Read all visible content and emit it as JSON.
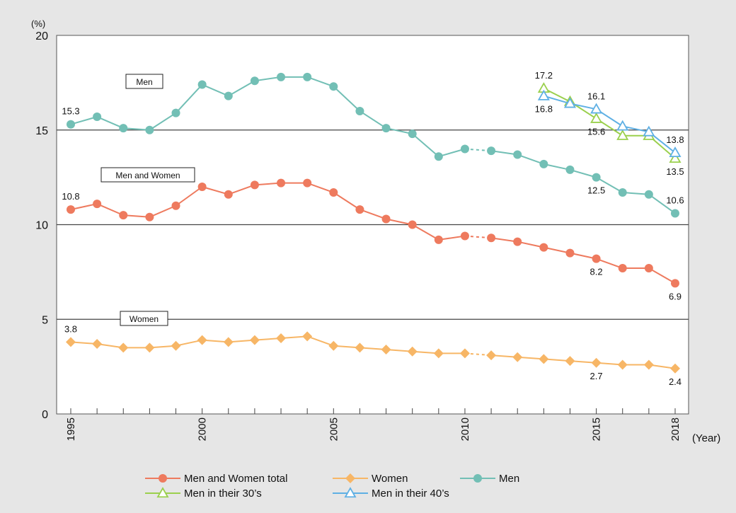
{
  "chart_data": {
    "type": "line",
    "y_unit_label": "(%)",
    "x_unit_label": "(Year)",
    "ylim": [
      0,
      20
    ],
    "y_ticks": [
      "0",
      "5",
      "10",
      "15",
      "20"
    ],
    "x_tick_labels": [
      "1995",
      "2000",
      "2005",
      "2010",
      "2015",
      "2018"
    ],
    "x_tick_values": [
      1995,
      2000,
      2005,
      2010,
      2015,
      2018
    ],
    "x_range": [
      1994.6,
      2018.6
    ],
    "gridlines_at": [
      5,
      10,
      15
    ],
    "boxed_labels": [
      "Men",
      "Men and Women",
      "Women"
    ],
    "legend_position": "bottom",
    "colors": {
      "background": "#e6e6e6",
      "plot": "#ffffff",
      "men_and_women": "#ee7a5e",
      "women": "#f7b666",
      "men": "#72bfb5",
      "men_30s": "#9bd04e",
      "men_40s": "#5fb0e4"
    },
    "series": [
      {
        "name": "Men and Women total",
        "marker": "circle",
        "color_key": "men_and_women",
        "dashed_segment_after_year": 2010,
        "x": [
          1995,
          1996,
          1997,
          1998,
          1999,
          2000,
          2001,
          2002,
          2003,
          2004,
          2005,
          2006,
          2007,
          2008,
          2009,
          2010,
          2011,
          2012,
          2013,
          2014,
          2015,
          2016,
          2017,
          2018
        ],
        "values": [
          10.8,
          11.1,
          10.5,
          10.4,
          11.0,
          12.0,
          11.6,
          12.1,
          12.2,
          12.2,
          11.7,
          10.8,
          10.3,
          10.0,
          9.2,
          9.4,
          9.3,
          9.1,
          8.8,
          8.5,
          8.2,
          7.7,
          7.7,
          6.9
        ]
      },
      {
        "name": "Women",
        "marker": "diamond",
        "color_key": "women",
        "dashed_segment_after_year": 2010,
        "x": [
          1995,
          1996,
          1997,
          1998,
          1999,
          2000,
          2001,
          2002,
          2003,
          2004,
          2005,
          2006,
          2007,
          2008,
          2009,
          2010,
          2011,
          2012,
          2013,
          2014,
          2015,
          2016,
          2017,
          2018
        ],
        "values": [
          3.8,
          3.7,
          3.5,
          3.5,
          3.6,
          3.9,
          3.8,
          3.9,
          4.0,
          4.1,
          3.6,
          3.5,
          3.4,
          3.3,
          3.2,
          3.2,
          3.1,
          3.0,
          2.9,
          2.8,
          2.7,
          2.6,
          2.6,
          2.4
        ]
      },
      {
        "name": "Men",
        "marker": "circle",
        "color_key": "men",
        "dashed_segment_after_year": 2010,
        "x": [
          1995,
          1996,
          1997,
          1998,
          1999,
          2000,
          2001,
          2002,
          2003,
          2004,
          2005,
          2006,
          2007,
          2008,
          2009,
          2010,
          2011,
          2012,
          2013,
          2014,
          2015,
          2016,
          2017,
          2018
        ],
        "values": [
          15.3,
          15.7,
          15.1,
          15.0,
          15.9,
          17.4,
          16.8,
          17.6,
          17.8,
          17.8,
          17.3,
          16.0,
          15.1,
          14.8,
          13.6,
          14.0,
          13.9,
          13.7,
          13.2,
          12.9,
          12.5,
          11.7,
          11.6,
          10.6
        ]
      },
      {
        "name": "Men in their 30’s",
        "marker": "triangle",
        "color_key": "men_30s",
        "x": [
          2013,
          2014,
          2015,
          2016,
          2017,
          2018
        ],
        "values": [
          17.2,
          16.5,
          15.6,
          14.7,
          14.7,
          13.5
        ]
      },
      {
        "name": "Men in their 40’s",
        "marker": "triangle",
        "color_key": "men_40s",
        "x": [
          2013,
          2014,
          2015,
          2016,
          2017,
          2018
        ],
        "values": [
          16.8,
          16.4,
          16.1,
          15.2,
          14.9,
          13.8
        ]
      }
    ],
    "data_labels": [
      {
        "x": 1995,
        "y": 10.8,
        "text": "10.8",
        "pos": "above"
      },
      {
        "x": 2015,
        "y": 8.2,
        "text": "8.2",
        "pos": "below"
      },
      {
        "x": 2018,
        "y": 6.9,
        "text": "6.9",
        "pos": "below"
      },
      {
        "x": 1995,
        "y": 3.8,
        "text": "3.8",
        "pos": "above"
      },
      {
        "x": 2015,
        "y": 2.7,
        "text": "2.7",
        "pos": "below"
      },
      {
        "x": 2018,
        "y": 2.4,
        "text": "2.4",
        "pos": "below"
      },
      {
        "x": 1995,
        "y": 15.3,
        "text": "15.3",
        "pos": "above"
      },
      {
        "x": 2015,
        "y": 12.5,
        "text": "12.5",
        "pos": "below"
      },
      {
        "x": 2018,
        "y": 10.6,
        "text": "10.6",
        "pos": "above"
      },
      {
        "x": 2013,
        "y": 17.2,
        "text": "17.2",
        "pos": "above"
      },
      {
        "x": 2013,
        "y": 16.8,
        "text": "16.8",
        "pos": "below"
      },
      {
        "x": 2015,
        "y": 16.1,
        "text": "16.1",
        "pos": "above"
      },
      {
        "x": 2015,
        "y": 15.6,
        "text": "15.6",
        "pos": "below"
      },
      {
        "x": 2018,
        "y": 13.8,
        "text": "13.8",
        "pos": "above"
      },
      {
        "x": 2018,
        "y": 13.5,
        "text": "13.5",
        "pos": "below"
      }
    ]
  }
}
